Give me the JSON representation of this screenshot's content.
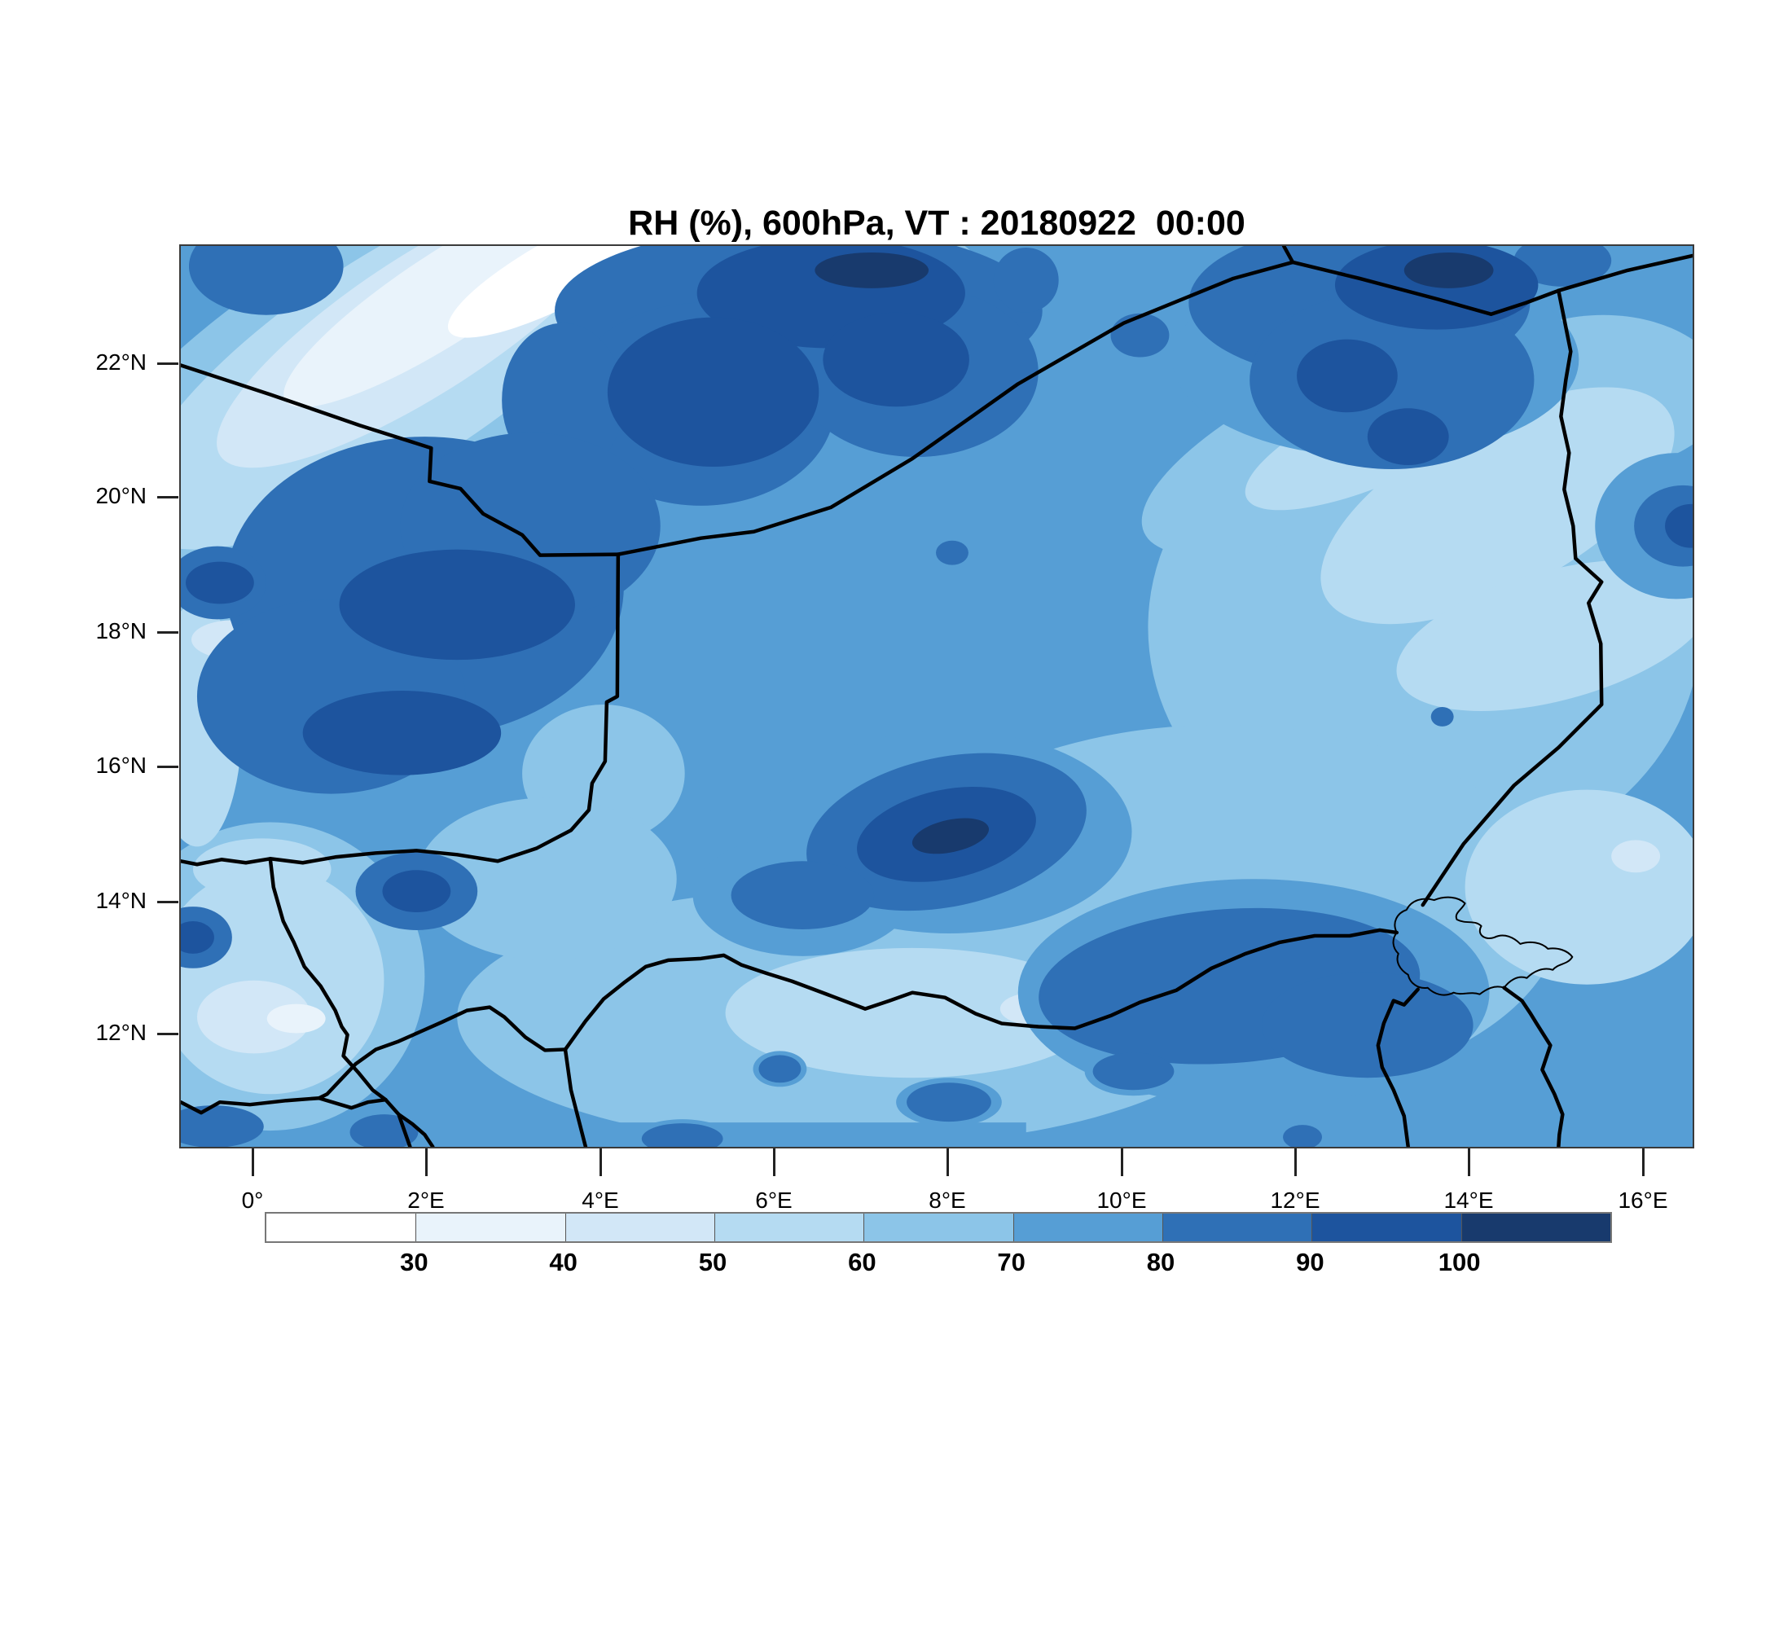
{
  "chart_data": {
    "type": "heatmap",
    "subtype": "filled-contour-map",
    "title": "RH (%), 600hPa, VT : 20180922  00:00",
    "variable": "RH",
    "units": "%",
    "pressure_level": "600hPa",
    "valid_time": "20180922 00:00",
    "x_tick_labels": [
      "0°",
      "2°E",
      "4°E",
      "6°E",
      "8°E",
      "10°E",
      "12°E",
      "14°E",
      "16°E"
    ],
    "y_tick_labels": [
      "22°N",
      "20°N",
      "18°N",
      "16°N",
      "14°N",
      "12°N"
    ],
    "grid": false,
    "legend_position": "bottom-colorbar",
    "colorbar": {
      "orientation": "horizontal",
      "boundary_labels": [
        "30",
        "40",
        "50",
        "60",
        "70",
        "80",
        "90",
        "100"
      ],
      "boundary_values": [
        30,
        40,
        50,
        60,
        70,
        80,
        90,
        100
      ],
      "segment_colors": [
        "#ffffff",
        "#e9f3fb",
        "#d2e7f7",
        "#b5dbf2",
        "#8cc5e8",
        "#569ed5",
        "#2f70b6",
        "#1d549e",
        "#183a6d"
      ],
      "description": "9 filled-contour classes from below 30 (white) to above 100 (dark navy), interval 10"
    },
    "overlays": [
      "country-borders",
      "lake-chad-outline"
    ]
  }
}
